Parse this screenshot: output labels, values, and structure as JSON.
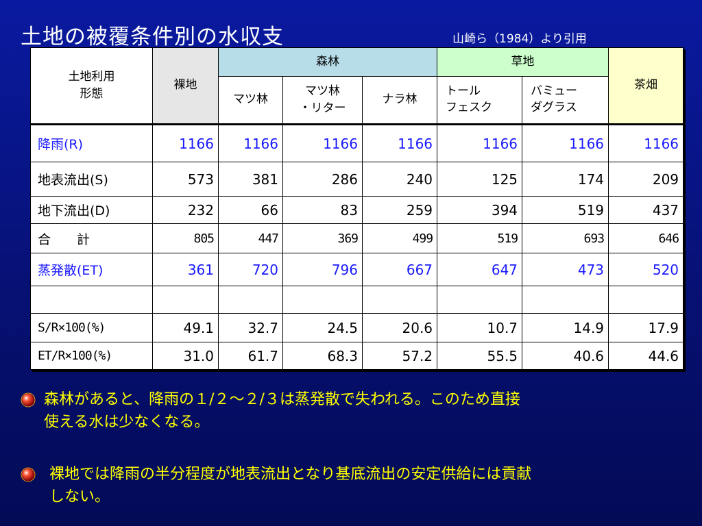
{
  "title": "土地の被覆条件別の水収支",
  "citation": "山崎ら（1984）より引用",
  "table": {
    "header": {
      "land_use": "土地利用",
      "land_use_2": "形態",
      "bare": "裸地",
      "forest": "森林",
      "grass": "草地",
      "tea": "茶畑",
      "pine": "マツ林",
      "pine_litter_1": "マツ林",
      "pine_litter_2": "・リター",
      "oak": "ナラ林",
      "tall_fescue_1": "トール",
      "tall_fescue_2": "フェスク",
      "bahia_1": "バミュー",
      "bahia_2": "ダグラス"
    },
    "rows": [
      {
        "label": "降雨(R)",
        "values": [
          "1166",
          "1166",
          "1166",
          "1166",
          "1166",
          "1166",
          "1166"
        ]
      },
      {
        "label": "地表流出(S)",
        "values": [
          "573",
          "381",
          "286",
          "240",
          "125",
          "174",
          "209"
        ]
      },
      {
        "label": "地下流出(D)",
        "values": [
          "232",
          "66",
          "83",
          "259",
          "394",
          "519",
          "437"
        ]
      },
      {
        "label": "合　　計",
        "values": [
          "805",
          "447",
          "369",
          "499",
          "519",
          "693",
          "646"
        ]
      },
      {
        "label": "蒸発散(ET)",
        "values": [
          "361",
          "720",
          "796",
          "667",
          "647",
          "473",
          "520"
        ]
      },
      {
        "label": "",
        "values": [
          "",
          "",
          "",
          "",
          "",
          "",
          ""
        ]
      },
      {
        "label": "S/R×100(%)",
        "values": [
          "49.1",
          "32.7",
          "24.5",
          "20.6",
          "10.7",
          "14.9",
          "17.9"
        ]
      },
      {
        "label": "ET/R×100(%)",
        "values": [
          "31.0",
          "61.7",
          "68.3",
          "57.2",
          "55.5",
          "40.6",
          "44.6"
        ]
      }
    ]
  },
  "bullets": [
    {
      "icon": "red-ball-bullet-icon",
      "text_1": "森林があると、降雨の１/２～２/３は蒸発散で失われる。このため直接",
      "text_2": "使える水は少なくなる。"
    },
    {
      "icon": "red-ball-bullet-icon",
      "text_1": "裸地では降雨の半分程度が地表流出となり基底流出の安定供給には貢献",
      "text_2": "しない。"
    }
  ],
  "colors": {
    "background": "#061070",
    "title": "#ffffff",
    "bullet_text": "#ffff00",
    "highlight_row": "#1a1aff",
    "forest_header": "#b7dde8",
    "grass_header": "#ccffcc",
    "tea_header": "#ffffcc",
    "bare_header": "#e6e6e6"
  }
}
